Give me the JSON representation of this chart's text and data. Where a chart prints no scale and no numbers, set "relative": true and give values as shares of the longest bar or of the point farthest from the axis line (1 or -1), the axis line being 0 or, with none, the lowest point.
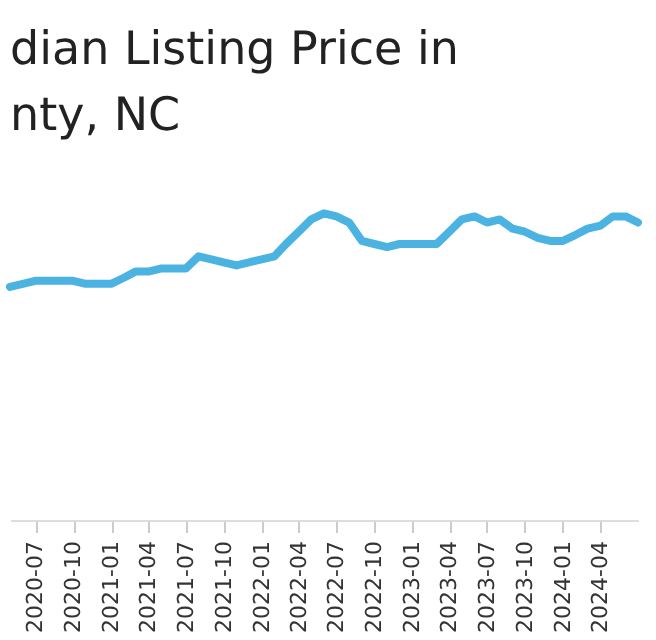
{
  "chart_data": {
    "type": "line",
    "title": "dian Listing Price in\nnty, NC",
    "relative": true,
    "color": "#4ab3e2",
    "x": [
      "2020-05",
      "2020-06",
      "2020-07",
      "2020-08",
      "2020-09",
      "2020-10",
      "2020-11",
      "2020-12",
      "2021-01",
      "2021-02",
      "2021-03",
      "2021-04",
      "2021-05",
      "2021-06",
      "2021-07",
      "2021-08",
      "2021-09",
      "2021-10",
      "2021-11",
      "2021-12",
      "2022-01",
      "2022-02",
      "2022-03",
      "2022-04",
      "2022-05",
      "2022-06",
      "2022-07",
      "2022-08",
      "2022-09",
      "2022-10",
      "2022-11",
      "2022-12",
      "2023-01",
      "2023-02",
      "2023-03",
      "2023-04",
      "2023-05",
      "2023-06",
      "2023-07",
      "2023-08",
      "2023-09",
      "2023-10",
      "2023-11",
      "2023-12",
      "2024-01",
      "2024-02",
      "2024-03",
      "2024-04",
      "2024-05",
      "2024-06",
      "2024-07"
    ],
    "values": [
      0.76,
      0.77,
      0.78,
      0.78,
      0.78,
      0.78,
      0.77,
      0.77,
      0.77,
      0.79,
      0.81,
      0.81,
      0.82,
      0.82,
      0.82,
      0.86,
      0.85,
      0.84,
      0.83,
      0.84,
      0.85,
      0.86,
      0.9,
      0.94,
      0.98,
      1,
      0.99,
      0.97,
      0.91,
      0.9,
      0.89,
      0.9,
      0.9,
      0.9,
      0.9,
      0.94,
      0.98,
      0.99,
      0.97,
      0.98,
      0.95,
      0.94,
      0.92,
      0.91,
      0.91,
      0.93,
      0.95,
      0.96,
      0.99,
      0.99,
      0.97
    ],
    "xlim": [
      "2020-05",
      "2024-07"
    ],
    "xticks": [
      "2020-07",
      "2020-10",
      "2021-01",
      "2021-04",
      "2021-07",
      "2021-10",
      "2022-01",
      "2022-04",
      "2022-07",
      "2022-10",
      "2023-01",
      "2023-04",
      "2023-07",
      "2023-10",
      "2024-01",
      "2024-04"
    ]
  }
}
